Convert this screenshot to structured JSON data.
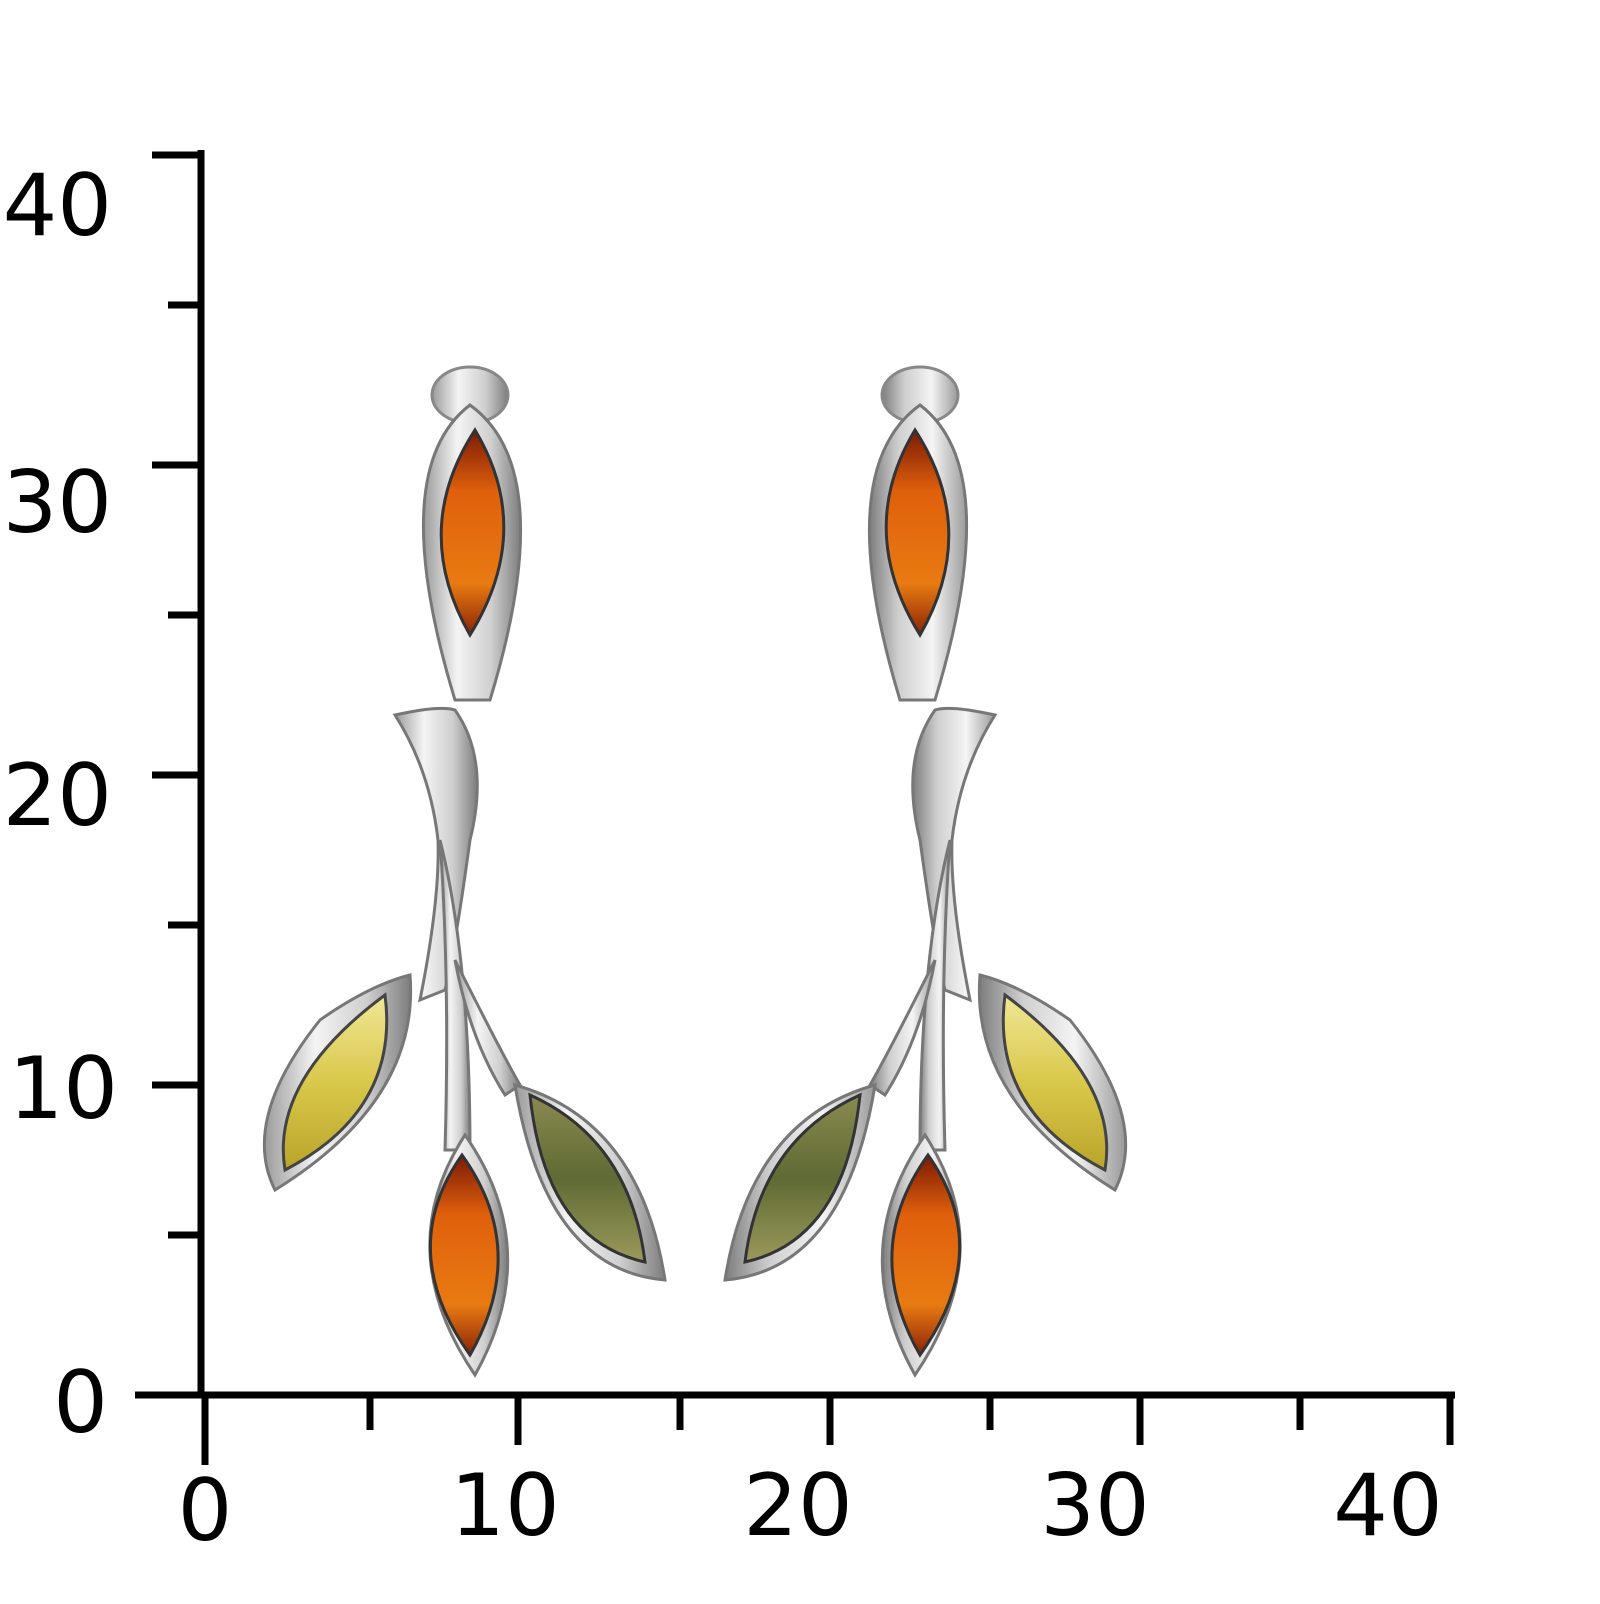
{
  "y_axis": {
    "labels": [
      "40",
      "30",
      "20",
      "10",
      "0"
    ]
  },
  "x_axis": {
    "labels": [
      "0",
      "10",
      "20",
      "30",
      "40"
    ]
  }
}
